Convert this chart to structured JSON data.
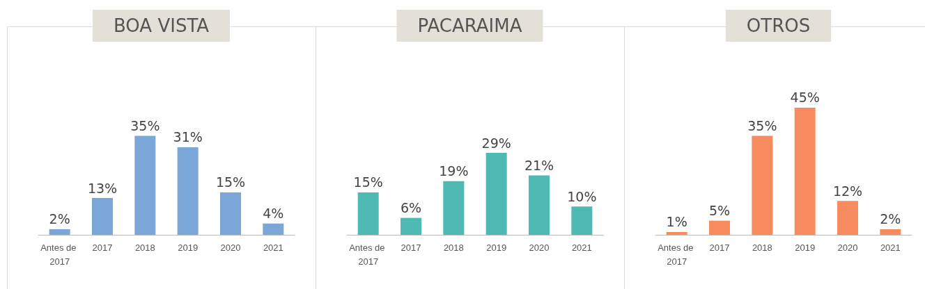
{
  "chart_data": [
    {
      "type": "bar",
      "title": "BOA VISTA",
      "categories": [
        "Antes de 2017",
        "2017",
        "2018",
        "2019",
        "2020",
        "2021"
      ],
      "values": [
        2,
        13,
        35,
        31,
        15,
        4
      ],
      "value_labels": [
        "2%",
        "13%",
        "35%",
        "31%",
        "15%",
        "4%"
      ],
      "color": "#7aa6d8"
    },
    {
      "type": "bar",
      "title": "PACARAIMA",
      "categories": [
        "Antes de 2017",
        "2017",
        "2018",
        "2019",
        "2020",
        "2021"
      ],
      "values": [
        15,
        6,
        19,
        29,
        21,
        10
      ],
      "value_labels": [
        "15%",
        "6%",
        "19%",
        "29%",
        "21%",
        "10%"
      ],
      "color": "#4fbab3"
    },
    {
      "type": "bar",
      "title": "OTROS",
      "categories": [
        "Antes de 2017",
        "2017",
        "2018",
        "2019",
        "2020",
        "2021"
      ],
      "values": [
        1,
        5,
        35,
        45,
        12,
        2
      ],
      "value_labels": [
        "1%",
        "5%",
        "35%",
        "45%",
        "12%",
        "2%"
      ],
      "color": "#f58b5f"
    }
  ]
}
